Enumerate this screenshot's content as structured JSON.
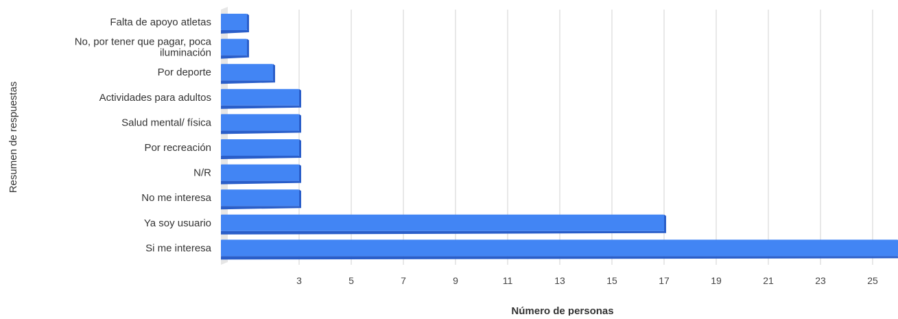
{
  "chart_data": {
    "type": "bar",
    "orientation": "horizontal",
    "title": "",
    "xlabel": "Número de personas",
    "ylabel": "Resumen de respuestas",
    "xlim": [
      0,
      26
    ],
    "xticks": [
      3,
      5,
      7,
      9,
      11,
      13,
      15,
      17,
      19,
      21,
      23,
      25
    ],
    "grid": true,
    "legend": "none",
    "bar_color": "#4285f4",
    "bar_shade": "#2a5ec9",
    "categories": [
      [
        "Falta de apoyo atletas"
      ],
      [
        "No, por tener que pagar, poca",
        "iluminación"
      ],
      [
        "Por deporte"
      ],
      [
        "Actividades para adultos"
      ],
      [
        "Salud mental/ física"
      ],
      [
        "Por recreación"
      ],
      [
        "N/R"
      ],
      [
        "No me interesa"
      ],
      [
        "Ya soy usuario"
      ],
      [
        "Si me interesa"
      ]
    ],
    "values": [
      1,
      1,
      2,
      3,
      3,
      3,
      3,
      3,
      17,
      26
    ]
  }
}
